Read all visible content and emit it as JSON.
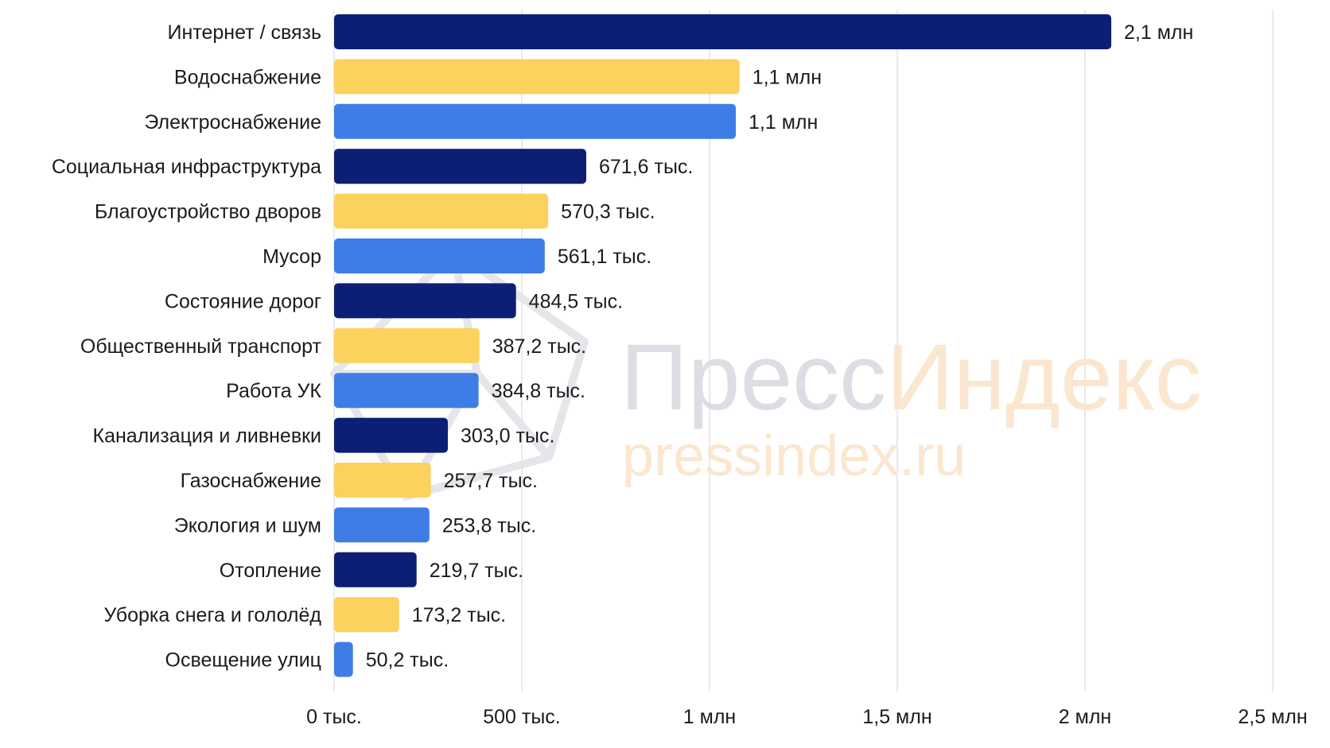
{
  "chart_data": {
    "type": "bar",
    "orientation": "horizontal",
    "categories": [
      "Интернет / связь",
      "Водоснабжение",
      "Электроснабжение",
      "Социальная инфраструктура",
      "Благоустройство дворов",
      "Мусор",
      "Состояние дорог",
      "Общественный транспорт",
      "Работа УК",
      "Канализация и ливневки",
      "Газоснабжение",
      "Экология и шум",
      "Отопление",
      "Уборка снега и гололёд",
      "Освещение улиц"
    ],
    "values": [
      2070000,
      1080000,
      1070000,
      671600,
      570300,
      561100,
      484500,
      387200,
      384800,
      303000,
      257700,
      253800,
      219700,
      173200,
      50200
    ],
    "value_labels": [
      "2,1 млн",
      "1,1 млн",
      "1,1 млн",
      "671,6 тыс.",
      "570,3 тыс.",
      "561,1 тыс.",
      "484,5 тыс.",
      "387,2 тыс.",
      "384,8 тыс.",
      "303,0 тыс.",
      "257,7 тыс.",
      "253,8 тыс.",
      "219,7 тыс.",
      "173,2 тыс.",
      "50,2 тыс."
    ],
    "xlim": [
      0,
      2500000
    ],
    "x_ticks": [
      0,
      500000,
      1000000,
      1500000,
      2000000,
      2500000
    ],
    "x_tick_labels": [
      "0 тыс.",
      "500 тыс.",
      "1 млн",
      "1,5 млн",
      "2 млн",
      "2,5 млн"
    ],
    "grid": "vertical",
    "bar_colors": [
      "#0c1f75",
      "#fbd25e",
      "#3f7de6"
    ],
    "title": "",
    "xlabel": "",
    "ylabel": ""
  },
  "watermark": {
    "line1_part1": "Пресс",
    "line1_part2": "Индекс",
    "line2": "pressindex.ru",
    "color_gray": "#d8d9e0",
    "color_orange": "#fbe3c8"
  }
}
